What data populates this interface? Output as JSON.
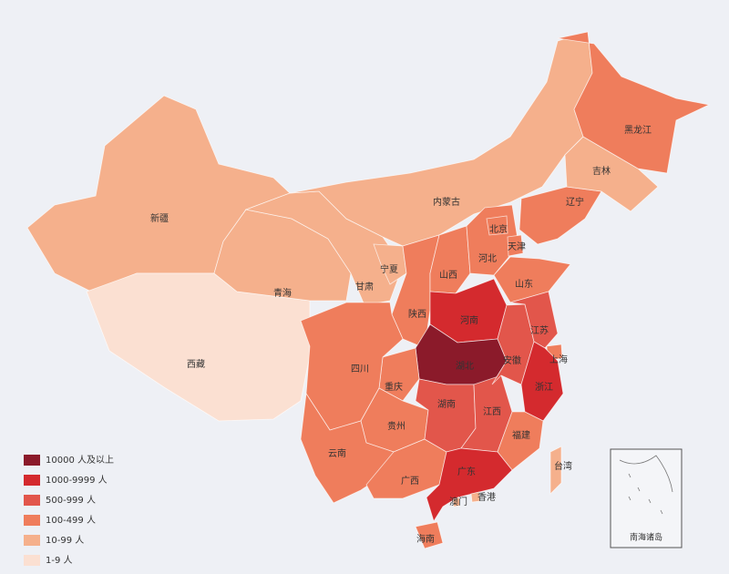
{
  "map": {
    "regions": [
      {
        "name": "新疆",
        "color": "#f5b08c"
      },
      {
        "name": "西藏",
        "color": "#fbe0d2"
      },
      {
        "name": "青海",
        "color": "#f5b08c"
      },
      {
        "name": "甘肃",
        "color": "#f5b08c"
      },
      {
        "name": "内蒙古",
        "color": "#f5b08c"
      },
      {
        "name": "宁夏",
        "color": "#f5b08c"
      },
      {
        "name": "陕西",
        "color": "#ef7d5c"
      },
      {
        "name": "山西",
        "color": "#ef7d5c"
      },
      {
        "name": "河北",
        "color": "#ef7d5c"
      },
      {
        "name": "北京",
        "color": "#ef7d5c"
      },
      {
        "name": "天津",
        "color": "#ef7d5c"
      },
      {
        "name": "山东",
        "color": "#ef7d5c"
      },
      {
        "name": "河南",
        "color": "#d42a2e"
      },
      {
        "name": "湖北",
        "color": "#8b1a2a"
      },
      {
        "name": "重庆",
        "color": "#ef7d5c"
      },
      {
        "name": "四川",
        "color": "#ef7d5c"
      },
      {
        "name": "贵州",
        "color": "#ef7d5c"
      },
      {
        "name": "云南",
        "color": "#ef7d5c"
      },
      {
        "name": "广西",
        "color": "#ef7d5c"
      },
      {
        "name": "湖南",
        "color": "#e2564b"
      },
      {
        "name": "江西",
        "color": "#e2564b"
      },
      {
        "name": "安徽",
        "color": "#e2564b"
      },
      {
        "name": "江苏",
        "color": "#e2564b"
      },
      {
        "name": "上海",
        "color": "#ef7d5c"
      },
      {
        "name": "浙江",
        "color": "#d42a2e"
      },
      {
        "name": "福建",
        "color": "#ef7d5c"
      },
      {
        "name": "广东",
        "color": "#d42a2e"
      },
      {
        "name": "香港",
        "color": "#f5b08c"
      },
      {
        "name": "澳门",
        "color": "#f5b08c"
      },
      {
        "name": "海南",
        "color": "#ef7d5c"
      },
      {
        "name": "台湾",
        "color": "#f5b08c"
      },
      {
        "name": "辽宁",
        "color": "#ef7d5c"
      },
      {
        "name": "吉林",
        "color": "#f5b08c"
      },
      {
        "name": "黑龙江",
        "color": "#ef7d5c"
      }
    ],
    "legend": [
      {
        "label": "10000 人及以上",
        "color": "#8b1a2a"
      },
      {
        "label": "1000-9999 人",
        "color": "#d42a2e"
      },
      {
        "label": "500-999 人",
        "color": "#e2564b"
      },
      {
        "label": "100-499 人",
        "color": "#ef7d5c"
      },
      {
        "label": "10-99 人",
        "color": "#f5b08c"
      },
      {
        "label": "1-9 人",
        "color": "#fbe0d2"
      }
    ],
    "inset_label": "南海诸岛"
  }
}
